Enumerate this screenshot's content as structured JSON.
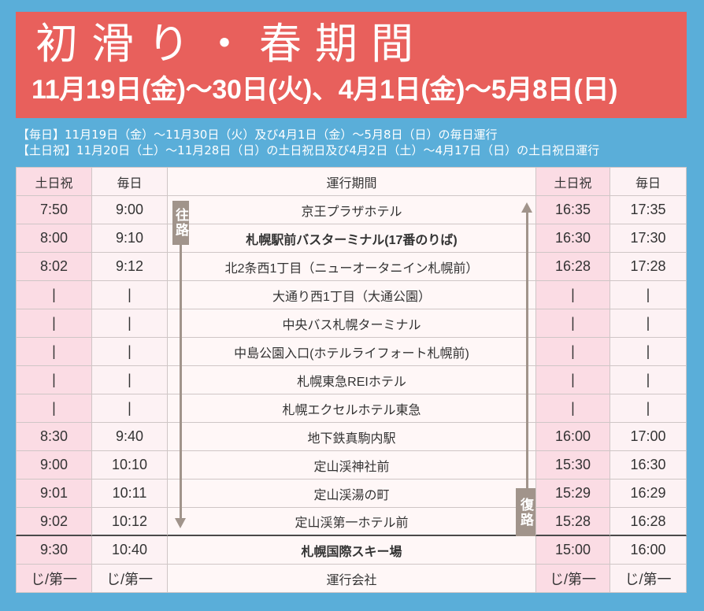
{
  "banner": {
    "title": "初滑り・春期間",
    "period": "11月19日(金)～30日(火)、4月1日(金)～5月8日(日)"
  },
  "notes": {
    "daily": "【毎日】11月19日（金）～11月30日（火）及び4月1日（金）～5月8日（日）の毎日運行",
    "weekend": "【土日祝】11月20日（土）～11月28日（日）の土日祝日及び4月2日（土）～4月17日（日）の土日祝日運行"
  },
  "timetable": {
    "headers": [
      "土日祝",
      "毎日",
      "運行期間",
      "土日祝",
      "毎日"
    ],
    "rows": [
      [
        "7:50",
        "9:00",
        "京王プラザホテル",
        "16:35",
        "17:35"
      ],
      [
        "8:00",
        "9:10",
        "札幌駅前バスターミナル(17番のりば)",
        "16:30",
        "17:30"
      ],
      [
        "8:02",
        "9:12",
        "北2条西1丁目（ニューオータニイン札幌前）",
        "16:28",
        "17:28"
      ],
      [
        "|",
        "|",
        "大通り西1丁目（大通公園）",
        "|",
        "|"
      ],
      [
        "|",
        "|",
        "中央バス札幌ターミナル",
        "|",
        "|"
      ],
      [
        "|",
        "|",
        "中島公園入口(ホテルライフォート札幌前)",
        "|",
        "|"
      ],
      [
        "|",
        "|",
        "札幌東急REIホテル",
        "|",
        "|"
      ],
      [
        "|",
        "|",
        "札幌エクセルホテル東急",
        "|",
        "|"
      ],
      [
        "8:30",
        "9:40",
        "地下鉄真駒内駅",
        "16:00",
        "17:00"
      ],
      [
        "9:00",
        "10:10",
        "定山渓神社前",
        "15:30",
        "16:30"
      ],
      [
        "9:01",
        "10:11",
        "定山渓湯の町",
        "15:29",
        "16:29"
      ],
      [
        "9:02",
        "10:12",
        "定山渓第一ホテル前",
        "15:28",
        "16:28"
      ],
      [
        "9:30",
        "10:40",
        "札幌国際スキー場",
        "15:00",
        "16:00"
      ]
    ],
    "operator_row": [
      "じ/第一",
      "じ/第一",
      "運行会社",
      "じ/第一",
      "じ/第一"
    ]
  },
  "arrows": {
    "outbound": "往路",
    "return": "復路"
  },
  "colors": {
    "background": "#5aaed9",
    "banner": "#e8605c",
    "weekend_column": "#fbdce4",
    "arrow": "#a1948b"
  }
}
